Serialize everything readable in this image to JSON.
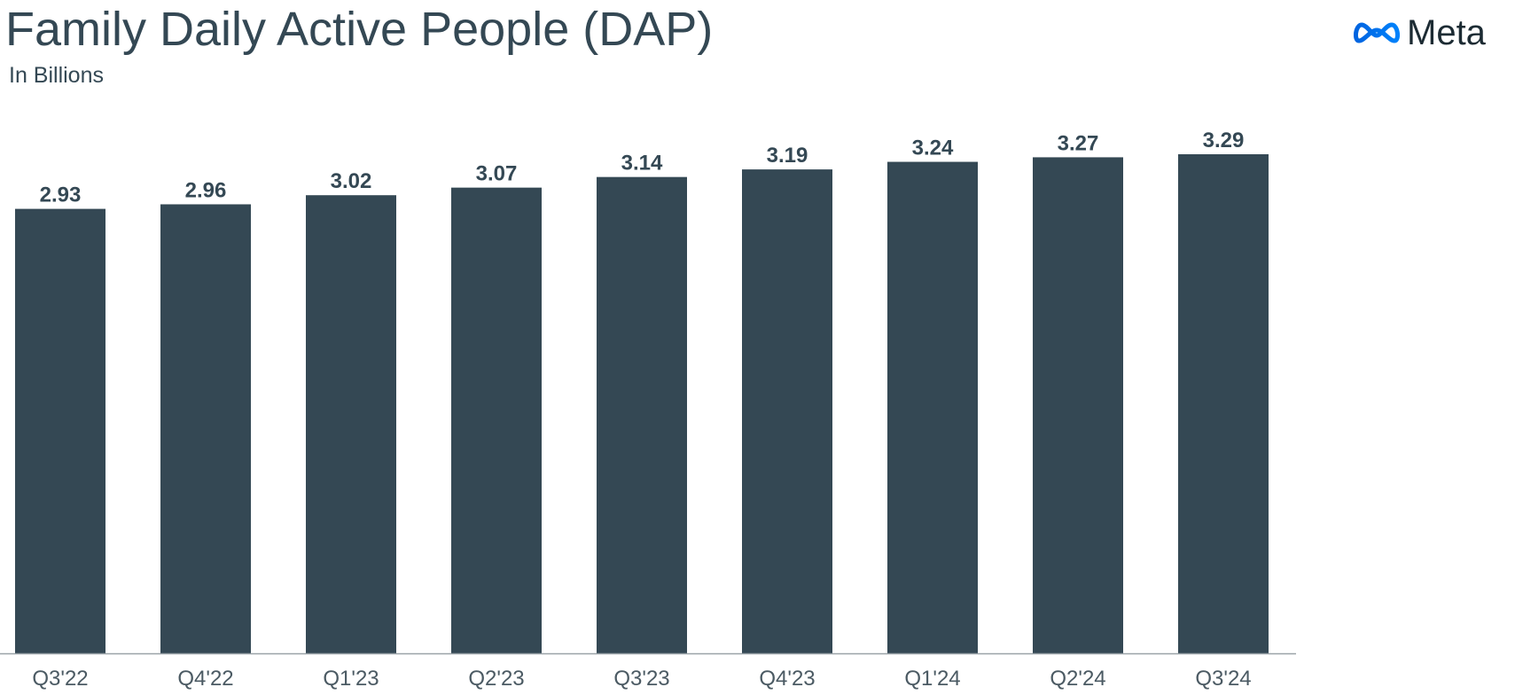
{
  "header": {
    "title": "Family Daily Active People (DAP)",
    "subtitle": "In Billions",
    "logo_text": "Meta",
    "logo_icon": "meta-infinity-icon"
  },
  "colors": {
    "bar": "#344854",
    "text": "#344854",
    "logo_gradient_start": "#0064e0",
    "logo_gradient_end": "#0082fb"
  },
  "chart_data": {
    "type": "bar",
    "title": "Family Daily Active People (DAP)",
    "subtitle": "In Billions",
    "xlabel": "",
    "ylabel": "",
    "categories": [
      "Q3'22",
      "Q4'22",
      "Q1'23",
      "Q2'23",
      "Q3'23",
      "Q4'23",
      "Q1'24",
      "Q2'24",
      "Q3'24"
    ],
    "values": [
      2.93,
      2.96,
      3.02,
      3.07,
      3.14,
      3.19,
      3.24,
      3.27,
      3.29
    ],
    "value_labels": [
      "2.93",
      "2.96",
      "3.02",
      "3.07",
      "3.14",
      "3.19",
      "3.24",
      "3.27",
      "3.29"
    ],
    "ylim": [
      0,
      3.29
    ],
    "grid": false,
    "legend": "none",
    "data_labels": "above-bars"
  }
}
